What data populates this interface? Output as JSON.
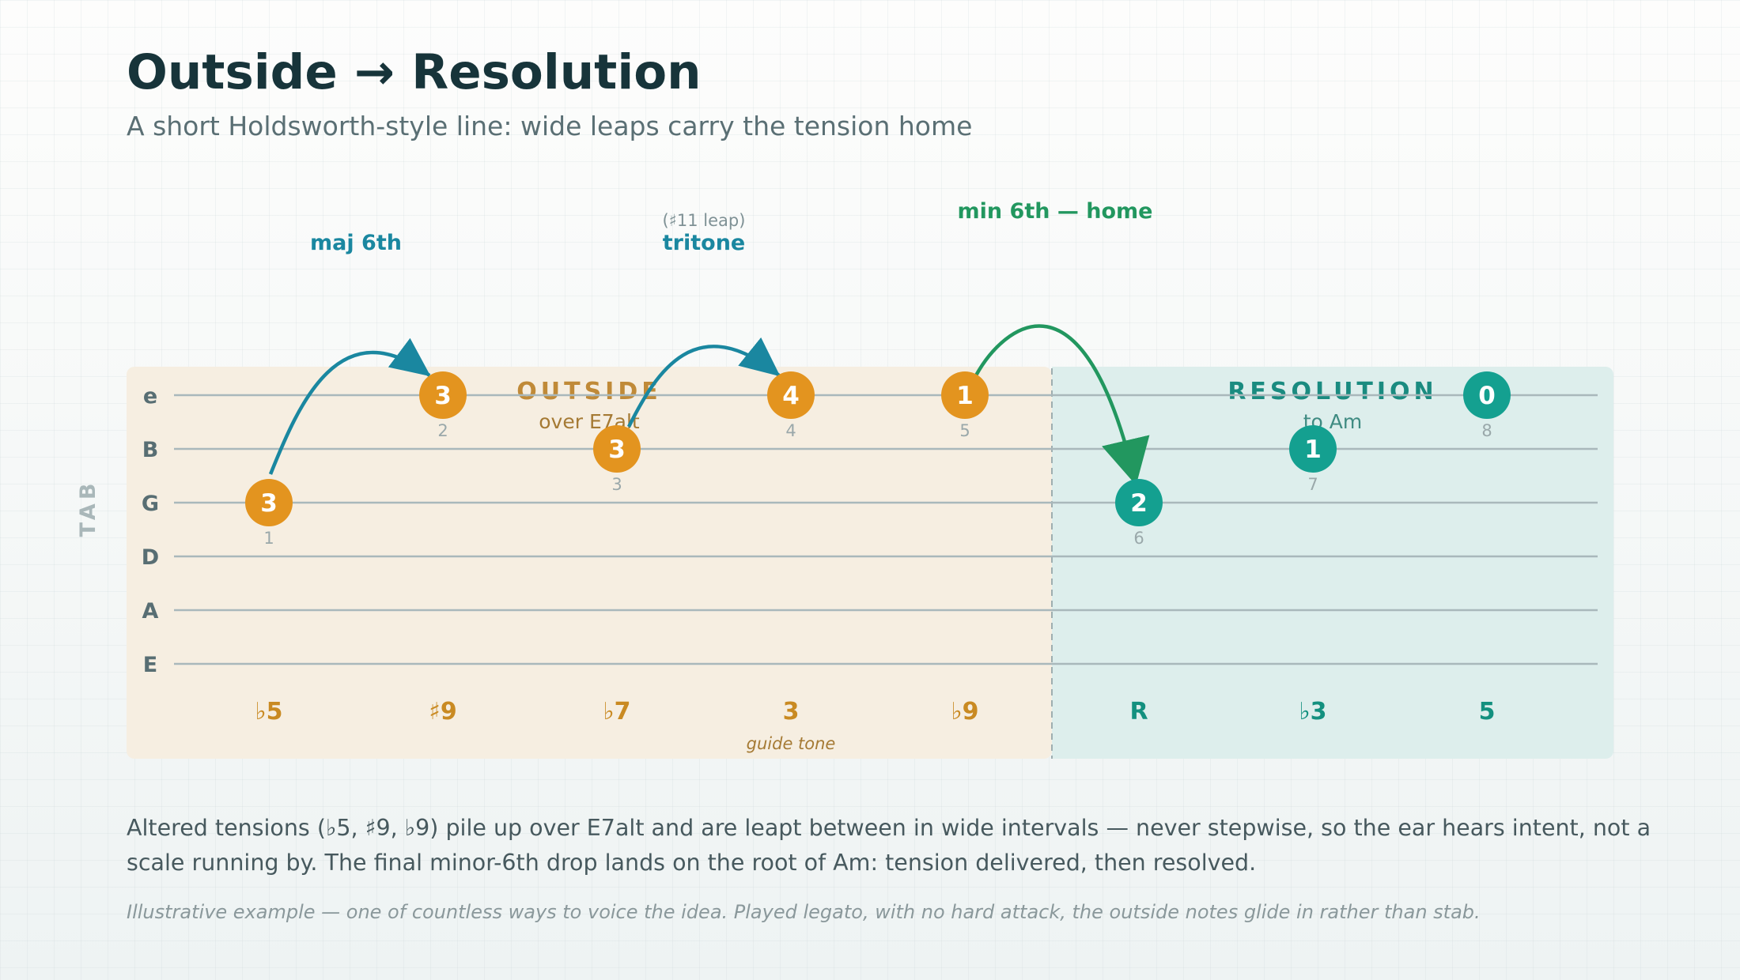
{
  "title": "Outside → Resolution",
  "subtitle": "A short Holdsworth-style line: wide leaps carry the tension home",
  "tab_label": "TAB",
  "strings": [
    "e",
    "B",
    "G",
    "D",
    "A",
    "E"
  ],
  "zones": {
    "outside": {
      "title": "OUTSIDE",
      "subtitle": "over E7alt"
    },
    "resolution": {
      "title": "RESOLUTION",
      "subtitle": "to Am"
    }
  },
  "notes": [
    {
      "index": "1",
      "string": "G",
      "fret": "3",
      "degree": "♭5",
      "zone": "outside"
    },
    {
      "index": "2",
      "string": "e",
      "fret": "3",
      "degree": "♯9",
      "zone": "outside"
    },
    {
      "index": "3",
      "string": "B",
      "fret": "3",
      "degree": "♭7",
      "zone": "outside"
    },
    {
      "index": "4",
      "string": "e",
      "fret": "4",
      "degree": "3",
      "zone": "outside",
      "annotation": "guide tone"
    },
    {
      "index": "5",
      "string": "e",
      "fret": "1",
      "degree": "♭9",
      "zone": "outside"
    },
    {
      "index": "6",
      "string": "G",
      "fret": "2",
      "degree": "R",
      "zone": "resolution"
    },
    {
      "index": "7",
      "string": "B",
      "fret": "1",
      "degree": "♭3",
      "zone": "resolution"
    },
    {
      "index": "8",
      "string": "e",
      "fret": "0",
      "degree": "5",
      "zone": "resolution"
    }
  ],
  "leaps": [
    {
      "from": 1,
      "to": 2,
      "label": "maj 6th",
      "note": "",
      "color": "#1a87a0"
    },
    {
      "from": 3,
      "to": 4,
      "label": "tritone",
      "note": "(♯11 leap)",
      "color": "#1a87a0"
    },
    {
      "from": 5,
      "to": 6,
      "label": "min 6th — home",
      "note": "",
      "color": "#22975f"
    }
  ],
  "colors": {
    "outside_note": "#e3941f",
    "resolution_note": "#14a090",
    "outside_degree": "#c98a22",
    "resolution_degree": "#13907f",
    "outside_bg": "#f6eee1",
    "resolution_bg": "#ddeeec"
  },
  "description": "Altered tensions (♭5, ♯9, ♭9) pile up over E7alt and are leapt between in wide intervals — never stepwise, so the ear hears intent, not a scale running by. The final minor-6th drop lands on the root of Am: tension delivered, then resolved.",
  "footnote": "Illustrative example — one of countless ways to voice the idea. Played legato, with no hard attack, the outside notes glide in rather than stab."
}
